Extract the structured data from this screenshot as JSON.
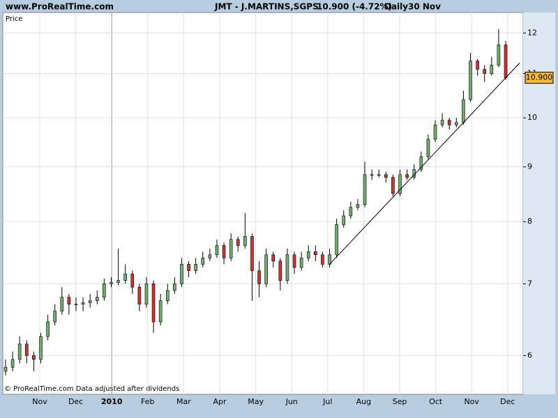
{
  "chart_data": {
    "type": "candlestick",
    "source": "www.ProRealTime.com",
    "title": "JMT - J.MARTINS,SGPS",
    "change": "10.900 (-4.72%)",
    "period": "Daily",
    "date": "30 Nov",
    "y_label": "Price",
    "footer": "© ProRealTime.com  Data adjusted after dividends",
    "categories": [
      "Nov",
      "Dec",
      "2010",
      "Feb",
      "Mar",
      "Apr",
      "May",
      "Jun",
      "Jul",
      "Aug",
      "Sep",
      "Oct",
      "Nov",
      "Dec"
    ],
    "open": [
      5.8,
      5.85,
      5.95,
      6.15,
      6.0,
      5.95,
      6.25,
      6.45,
      6.6,
      6.8,
      6.7,
      6.7,
      6.72,
      6.75,
      6.8,
      7.0,
      7.02,
      7.05,
      7.15,
      6.95,
      6.7,
      7.0,
      6.45,
      6.75,
      6.9,
      7.0,
      7.3,
      7.2,
      7.3,
      7.4,
      7.45,
      7.6,
      7.4,
      7.7,
      7.6,
      7.75,
      7.2,
      7.0,
      7.45,
      7.35,
      7.05,
      7.45,
      7.25,
      7.4,
      7.5,
      7.45,
      7.3,
      7.45,
      7.95,
      8.1,
      8.25,
      8.3,
      8.85,
      8.85,
      8.85,
      8.8,
      8.5,
      8.85,
      8.8,
      8.95,
      9.2,
      9.55,
      9.85,
      9.95,
      9.85,
      9.9,
      10.4,
      11.3,
      11.1,
      11.0,
      11.2,
      11.7
    ],
    "high": [
      5.95,
      6.05,
      6.25,
      6.2,
      6.05,
      6.3,
      6.55,
      6.7,
      6.95,
      6.85,
      6.8,
      6.8,
      6.85,
      6.9,
      7.08,
      7.1,
      7.55,
      7.3,
      7.2,
      7.0,
      7.1,
      7.05,
      6.85,
      7.0,
      7.1,
      7.4,
      7.35,
      7.4,
      7.5,
      7.55,
      7.7,
      7.65,
      7.8,
      7.75,
      8.15,
      7.8,
      7.35,
      7.55,
      7.5,
      7.4,
      7.55,
      7.5,
      7.5,
      7.6,
      7.6,
      7.5,
      7.55,
      8.05,
      8.2,
      8.35,
      8.4,
      9.1,
      8.95,
      8.95,
      8.9,
      8.85,
      8.95,
      8.95,
      9.05,
      9.3,
      9.65,
      9.95,
      10.1,
      10.0,
      10.0,
      10.6,
      11.5,
      11.35,
      11.2,
      11.4,
      12.1,
      11.8
    ],
    "low": [
      5.75,
      5.8,
      5.9,
      5.9,
      5.8,
      5.9,
      6.2,
      6.4,
      6.55,
      6.55,
      6.6,
      6.6,
      6.65,
      6.7,
      6.75,
      6.95,
      6.98,
      7.0,
      6.85,
      6.6,
      6.65,
      6.3,
      6.4,
      6.7,
      6.85,
      6.95,
      7.1,
      7.15,
      7.25,
      7.35,
      7.4,
      7.3,
      7.35,
      7.5,
      7.55,
      6.75,
      6.8,
      6.95,
      7.25,
      6.9,
      7.0,
      7.15,
      7.2,
      7.35,
      7.35,
      7.25,
      7.25,
      7.4,
      7.9,
      8.05,
      8.2,
      8.25,
      8.75,
      8.8,
      8.7,
      8.45,
      8.45,
      8.75,
      8.75,
      8.9,
      9.15,
      9.5,
      9.8,
      9.75,
      9.8,
      9.85,
      10.35,
      10.95,
      10.8,
      10.95,
      11.15,
      10.85
    ],
    "close": [
      5.85,
      5.95,
      6.15,
      6.0,
      5.95,
      6.25,
      6.45,
      6.6,
      6.8,
      6.7,
      6.7,
      6.72,
      6.75,
      6.8,
      7.0,
      7.02,
      7.05,
      7.15,
      6.95,
      6.7,
      7.0,
      6.45,
      6.75,
      6.9,
      7.0,
      7.3,
      7.2,
      7.3,
      7.4,
      7.45,
      7.6,
      7.4,
      7.7,
      7.6,
      7.75,
      7.2,
      7.0,
      7.45,
      7.35,
      7.05,
      7.45,
      7.25,
      7.4,
      7.5,
      7.45,
      7.3,
      7.45,
      7.95,
      8.1,
      8.25,
      8.3,
      8.85,
      8.85,
      8.85,
      8.8,
      8.5,
      8.85,
      8.8,
      8.95,
      9.2,
      9.55,
      9.85,
      9.95,
      9.85,
      9.9,
      10.4,
      11.3,
      11.1,
      11.0,
      11.2,
      11.7,
      10.9
    ],
    "up_color": "#6fae6f",
    "down_color": "#cc3333",
    "trendline": [
      7.3,
      11.25
    ],
    "last_price": {
      "value": 10.9,
      "label": "10.900"
    },
    "log_scale": true,
    "grid": true,
    "ylim": [
      5.52,
      12.54
    ],
    "yticks": [
      6,
      7,
      8,
      9,
      10,
      11,
      12
    ]
  }
}
